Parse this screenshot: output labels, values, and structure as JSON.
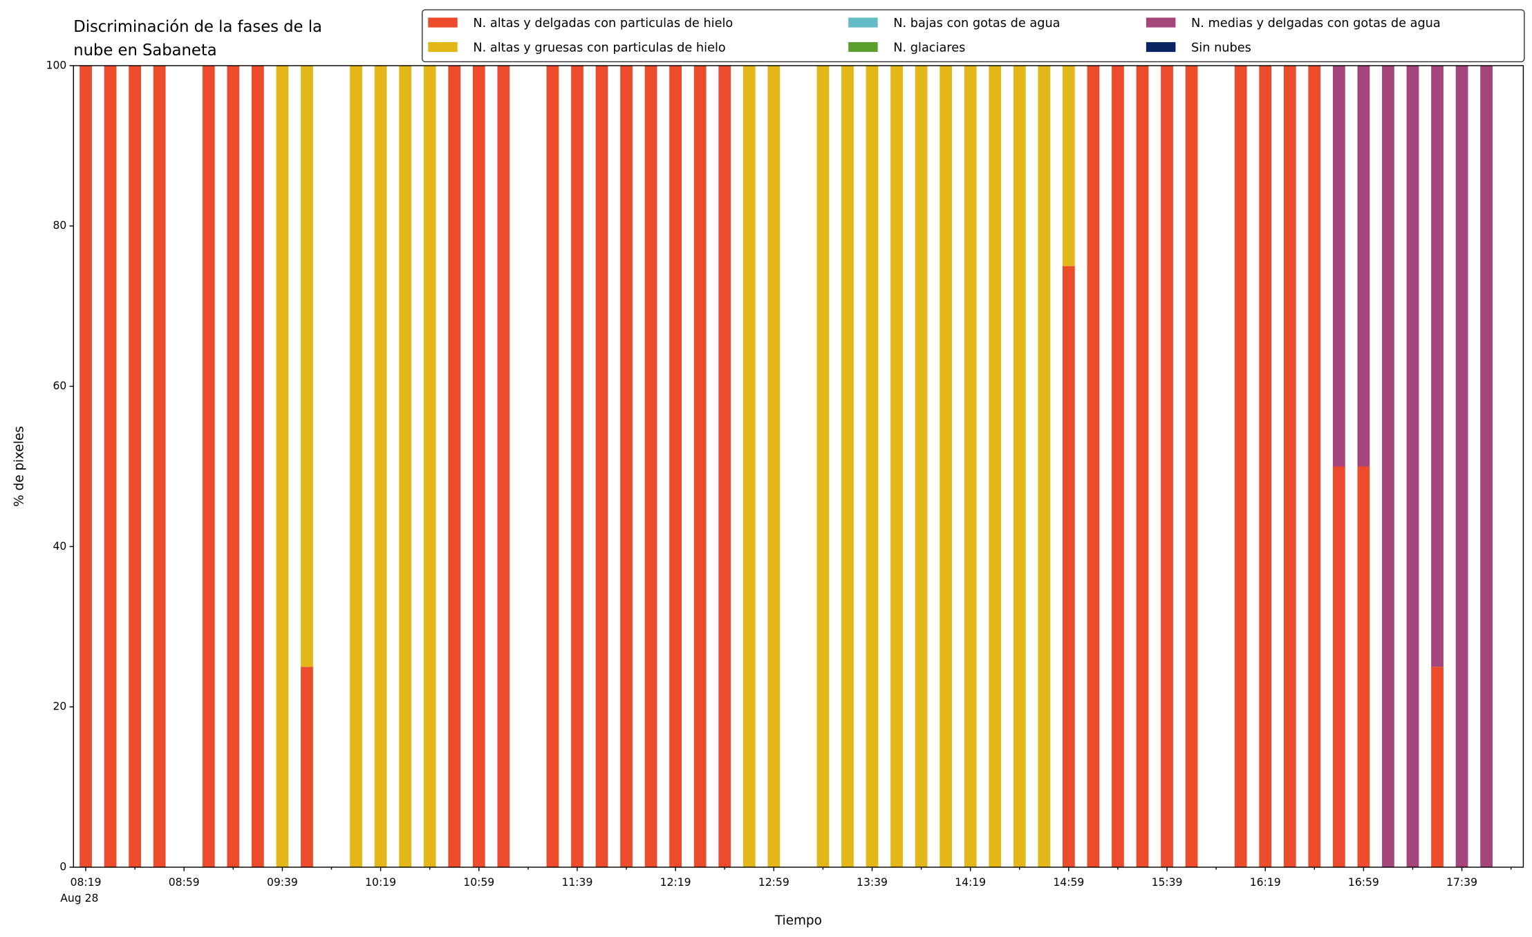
{
  "chart_data": {
    "type": "stacked_bar",
    "title": [
      "Discriminación de la fases de la",
      "nube en Sabaneta"
    ],
    "xlabel": "Tiempo",
    "ylabel": "% de pixeles",
    "x": [
      "08:19",
      "08:29",
      "08:39",
      "08:49",
      "09:09",
      "09:19",
      "09:29",
      "09:39",
      "09:49",
      "10:09",
      "10:19",
      "10:29",
      "10:39",
      "10:49",
      "10:59",
      "11:09",
      "11:29",
      "11:39",
      "11:49",
      "11:59",
      "12:09",
      "12:19",
      "12:29",
      "12:39",
      "12:49",
      "12:59",
      "13:19",
      "13:29",
      "13:39",
      "13:49",
      "13:59",
      "14:09",
      "14:19",
      "14:29",
      "14:39",
      "14:49",
      "14:59",
      "15:09",
      "15:19",
      "15:29",
      "15:39",
      "15:49",
      "16:09",
      "16:19",
      "16:29",
      "16:39",
      "16:49",
      "16:59",
      "17:09",
      "17:19",
      "17:29",
      "17:39",
      "17:49"
    ],
    "series": [
      {
        "name": "N. altas y delgadas con particulas de hielo",
        "color": "#ec4b2c",
        "values": [
          100,
          100,
          100,
          100,
          100,
          100,
          100,
          0,
          25,
          0,
          0,
          0,
          0,
          100,
          100,
          100,
          100,
          100,
          100,
          100,
          100,
          100,
          100,
          100,
          0,
          0,
          0,
          0,
          0,
          0,
          0,
          0,
          0,
          0,
          0,
          0,
          75,
          100,
          100,
          100,
          100,
          100,
          100,
          100,
          100,
          100,
          50,
          50,
          0,
          0,
          25,
          0,
          0
        ]
      },
      {
        "name": "N. altas y gruesas con particulas de hielo",
        "color": "#e3b718",
        "values": [
          0,
          0,
          0,
          0,
          0,
          0,
          0,
          100,
          75,
          100,
          100,
          100,
          100,
          0,
          0,
          0,
          0,
          0,
          0,
          0,
          0,
          0,
          0,
          0,
          100,
          100,
          100,
          100,
          100,
          100,
          100,
          100,
          100,
          100,
          100,
          100,
          25,
          0,
          0,
          0,
          0,
          0,
          0,
          0,
          0,
          0,
          0,
          0,
          0,
          0,
          0,
          0,
          0
        ]
      },
      {
        "name": "N. bajas con gotas de agua",
        "color": "#63bcc6",
        "values": [
          0,
          0,
          0,
          0,
          0,
          0,
          0,
          0,
          0,
          0,
          0,
          0,
          0,
          0,
          0,
          0,
          0,
          0,
          0,
          0,
          0,
          0,
          0,
          0,
          0,
          0,
          0,
          0,
          0,
          0,
          0,
          0,
          0,
          0,
          0,
          0,
          0,
          0,
          0,
          0,
          0,
          0,
          0,
          0,
          0,
          0,
          0,
          0,
          0,
          0,
          0,
          0,
          0
        ]
      },
      {
        "name": "N. glaciares",
        "color": "#5c9e2e",
        "values": [
          0,
          0,
          0,
          0,
          0,
          0,
          0,
          0,
          0,
          0,
          0,
          0,
          0,
          0,
          0,
          0,
          0,
          0,
          0,
          0,
          0,
          0,
          0,
          0,
          0,
          0,
          0,
          0,
          0,
          0,
          0,
          0,
          0,
          0,
          0,
          0,
          0,
          0,
          0,
          0,
          0,
          0,
          0,
          0,
          0,
          0,
          0,
          0,
          0,
          0,
          0,
          0,
          0
        ]
      },
      {
        "name": "N. medias y delgadas con gotas de agua",
        "color": "#a4457b",
        "values": [
          0,
          0,
          0,
          0,
          0,
          0,
          0,
          0,
          0,
          0,
          0,
          0,
          0,
          0,
          0,
          0,
          0,
          0,
          0,
          0,
          0,
          0,
          0,
          0,
          0,
          0,
          0,
          0,
          0,
          0,
          0,
          0,
          0,
          0,
          0,
          0,
          0,
          0,
          0,
          0,
          0,
          0,
          0,
          0,
          0,
          0,
          50,
          50,
          100,
          100,
          75,
          100,
          100
        ]
      },
      {
        "name": "Sin nubes",
        "color": "#0b2462",
        "values": [
          0,
          0,
          0,
          0,
          0,
          0,
          0,
          0,
          0,
          0,
          0,
          0,
          0,
          0,
          0,
          0,
          0,
          0,
          0,
          0,
          0,
          0,
          0,
          0,
          0,
          0,
          0,
          0,
          0,
          0,
          0,
          0,
          0,
          0,
          0,
          0,
          0,
          0,
          0,
          0,
          0,
          0,
          0,
          0,
          0,
          0,
          0,
          0,
          0,
          0,
          0,
          0,
          0
        ]
      }
    ],
    "xlim": [
      "08:14",
      "18:04"
    ],
    "xticks": [
      "08:19",
      "08:59",
      "09:39",
      "10:19",
      "10:59",
      "11:39",
      "12:19",
      "12:59",
      "13:39",
      "14:19",
      "14:59",
      "15:39",
      "16:19",
      "16:59",
      "17:39"
    ],
    "x_date_label": "Aug 28",
    "xminorticks": [
      "08:39",
      "09:19",
      "09:59",
      "10:39",
      "11:19",
      "11:59",
      "12:39",
      "13:19",
      "13:59",
      "14:39",
      "15:19",
      "15:59",
      "16:39",
      "17:19",
      "17:59"
    ],
    "ylim": [
      0,
      100
    ],
    "yticks": [
      0,
      20,
      40,
      60,
      80,
      100
    ],
    "legend": "upper right"
  }
}
